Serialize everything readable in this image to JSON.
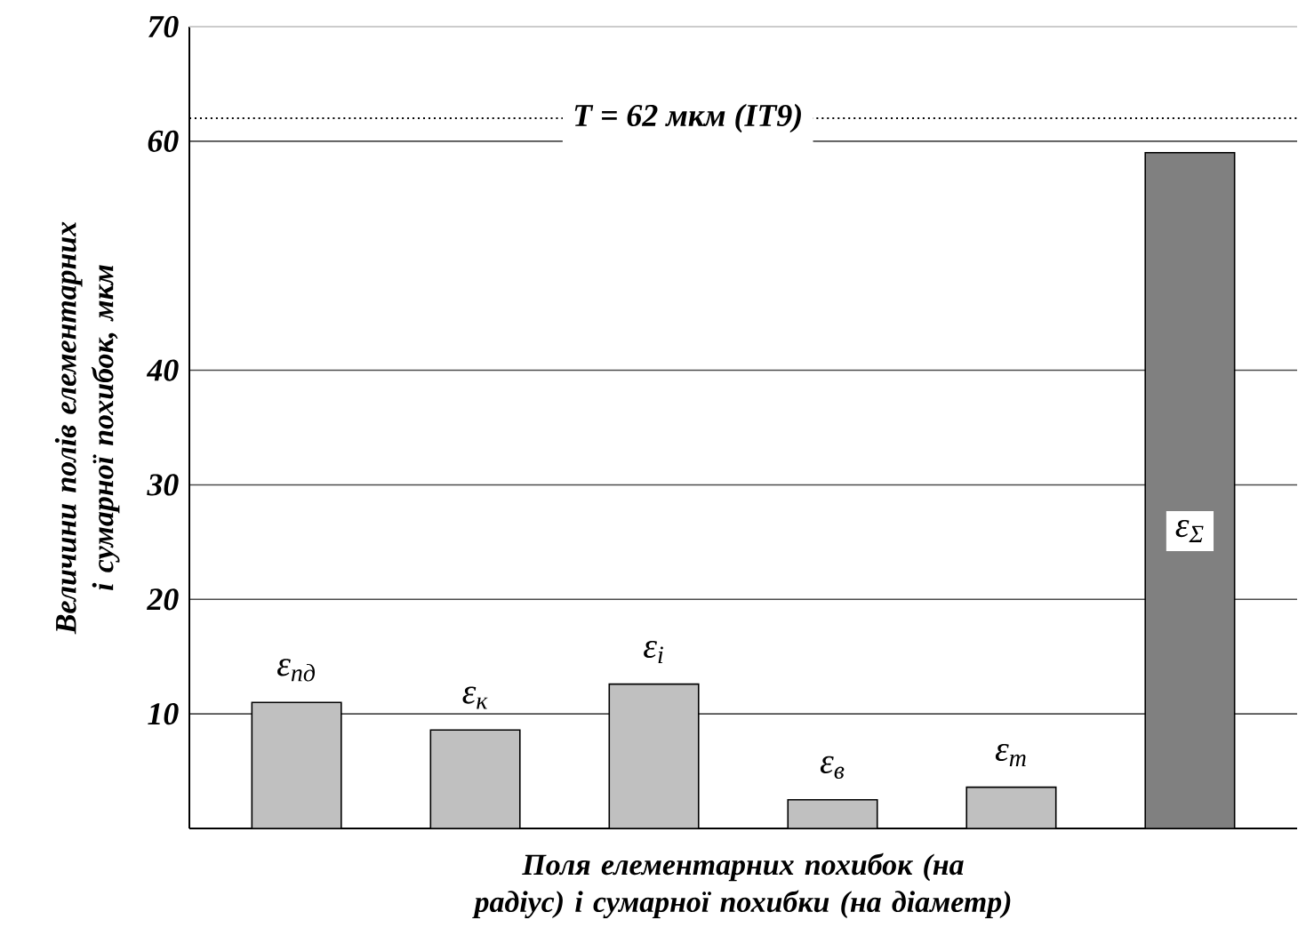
{
  "chart_data": {
    "type": "bar",
    "xlabel": "Поля елементарних похибок (на радіус) і сумарної похибки (на діаметр)",
    "ylabel": "Величини полів елементарних і сумарної похибок, мкм",
    "categories": [
      "ε$_{пд}$",
      "ε$_{к}$",
      "ε$_{і}$",
      "ε$_{в}$",
      "ε$_{т}$",
      "ε$_{Σ}$"
    ],
    "values": [
      11,
      8.6,
      12.6,
      2.5,
      3.6,
      59
    ],
    "colors": [
      "#c0c0c0",
      "#c0c0c0",
      "#c0c0c0",
      "#c0c0c0",
      "#c0c0c0",
      "#808080"
    ],
    "ylim": [
      0,
      70
    ],
    "yticks": [
      10,
      20,
      30,
      40,
      60,
      70
    ],
    "grid": "y",
    "ref_lines": [
      {
        "axis": "y",
        "value": 62,
        "label": "T = 62 мкм (IT9)",
        "line_style": "dotted"
      }
    ]
  }
}
